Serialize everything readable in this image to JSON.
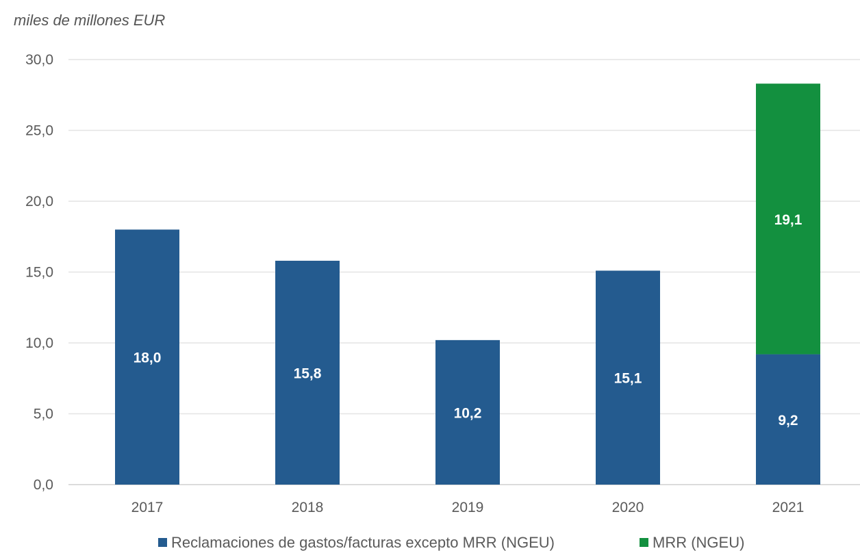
{
  "chart_data": {
    "type": "bar",
    "stacked": true,
    "unit_label": "miles de millones EUR",
    "categories": [
      "2017",
      "2018",
      "2019",
      "2020",
      "2021"
    ],
    "series": [
      {
        "name": "Reclamaciones de gastos/facturas excepto MRR (NGEU)",
        "color": "#245b8f",
        "values": [
          18.0,
          15.8,
          10.2,
          15.1,
          9.2
        ],
        "labels": [
          "18,0",
          "15,8",
          "10,2",
          "15,1",
          "9,2"
        ]
      },
      {
        "name": "MRR (NGEU)",
        "color": "#13903f",
        "values": [
          null,
          null,
          null,
          null,
          19.1
        ],
        "labels": [
          "",
          "",
          "",
          "",
          "19,1"
        ]
      }
    ],
    "ylim": [
      0,
      30
    ],
    "yticks": [
      0,
      5,
      10,
      15,
      20,
      25,
      30
    ],
    "ytick_labels": [
      "0,0",
      "5,0",
      "10,0",
      "15,0",
      "20,0",
      "25,0",
      "30,0"
    ],
    "grid": true,
    "legend_position": "bottom"
  }
}
